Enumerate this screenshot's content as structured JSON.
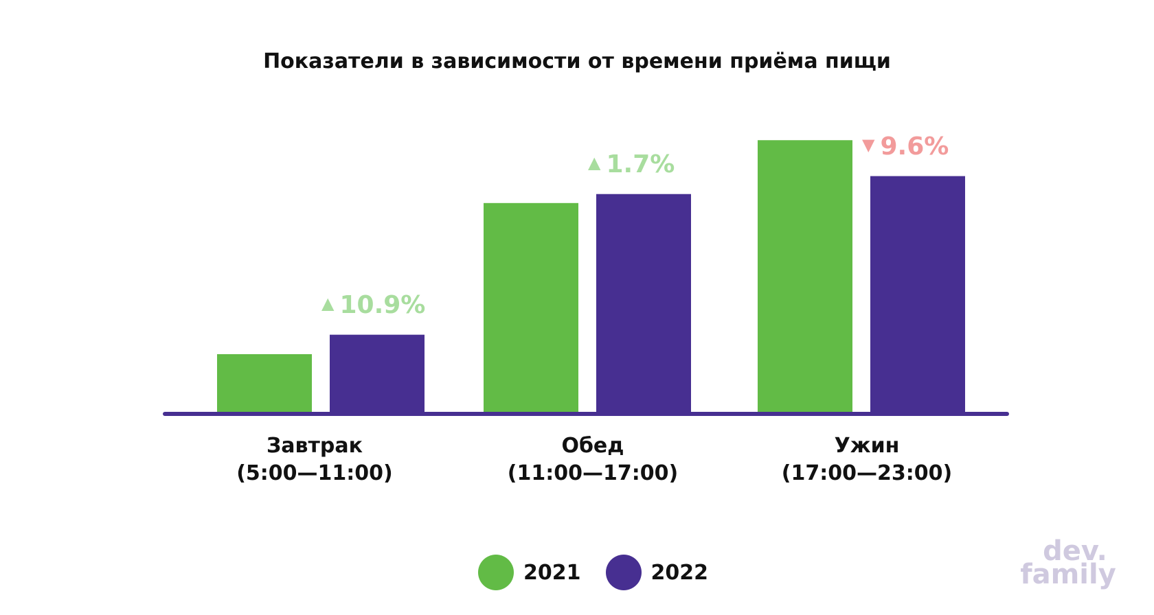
{
  "chart_data": {
    "type": "bar",
    "title": "Показатели в зависимости от времени приёма пищи",
    "categories": [
      {
        "name": "Завтрак",
        "time": "(5:00—11:00)"
      },
      {
        "name": "Обед",
        "time": "(11:00—17:00)"
      },
      {
        "name": "Ужин",
        "time": "(17:00—23:00)"
      }
    ],
    "series": [
      {
        "name": "2021",
        "color": "#62bb46",
        "values": [
          19.5,
          70,
          91
        ]
      },
      {
        "name": "2022",
        "color": "#472f91",
        "values": [
          26,
          73,
          79
        ]
      }
    ],
    "changes": [
      {
        "text": "10.9%",
        "direction": "up",
        "color": "#a8dd9e"
      },
      {
        "text": "1.7%",
        "direction": "up",
        "color": "#a8dd9e"
      },
      {
        "text": "9.6%",
        "direction": "down",
        "color": "#f29b9b"
      }
    ],
    "ylim": [
      0,
      100
    ],
    "grid": false,
    "axis_color": "#472f91",
    "legend_position": "bottom"
  },
  "arrows": {
    "up": "▲",
    "down": "▼"
  },
  "logo": {
    "line1": "dev.",
    "line2": "family"
  }
}
